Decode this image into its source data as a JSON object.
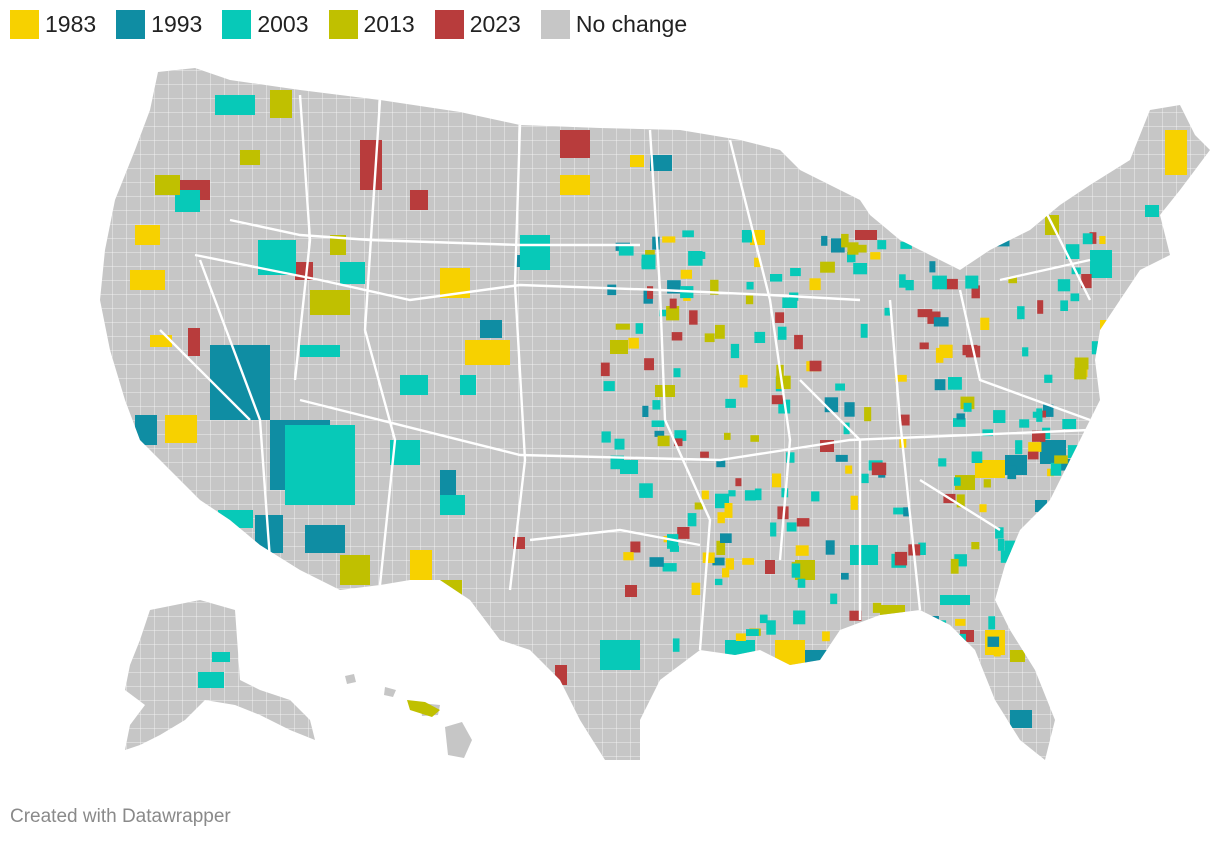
{
  "legend": {
    "items": [
      {
        "label": "1983",
        "color": "#f7d100"
      },
      {
        "label": "1993",
        "color": "#0f8da3"
      },
      {
        "label": "2003",
        "color": "#07c9b8"
      },
      {
        "label": "2013",
        "color": "#c0c000"
      },
      {
        "label": "2023",
        "color": "#b83c3c"
      },
      {
        "label": "No change",
        "color": "#c6c6c6"
      }
    ]
  },
  "map": {
    "base_color": "#c6c6c6",
    "border_color": "#ffffff",
    "regions": [
      "contiguous-us",
      "alaska",
      "hawaii"
    ]
  },
  "footer": {
    "credit": "Created with Datawrapper"
  }
}
